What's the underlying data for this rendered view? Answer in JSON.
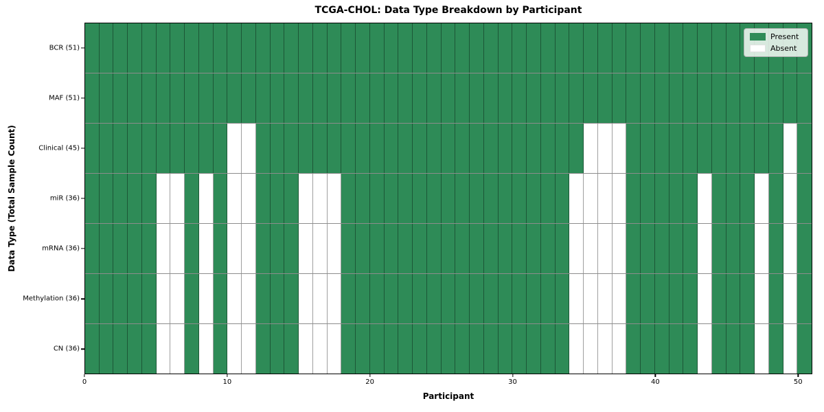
{
  "title": "TCGA-CHOL: Data Type Breakdown by Participant",
  "x_axis": {
    "label": "Participant",
    "ticks": [
      {
        "label": "0",
        "value": 0
      },
      {
        "label": "10",
        "value": 10
      },
      {
        "label": "20",
        "value": 20
      },
      {
        "label": "30",
        "value": 30
      },
      {
        "label": "40",
        "value": 40
      },
      {
        "label": "50",
        "value": 50
      }
    ]
  },
  "y_axis": {
    "label": "Data Type (Total Sample Count)"
  },
  "legend": {
    "items": [
      {
        "label": "Present",
        "color": "#2E8B57"
      },
      {
        "label": "Absent",
        "color": "#FFFFFF"
      }
    ]
  },
  "colors": {
    "present": "#2E8B57",
    "absent": "#FFFFFF",
    "spine": "#000000",
    "grid_line": "rgba(0,0,0,0.4)"
  },
  "chart_data": {
    "type": "heatmap",
    "title": "TCGA-CHOL: Data Type Breakdown by Participant",
    "xlabel": "Participant",
    "ylabel": "Data Type (Total Sample Count)",
    "x_range": [
      0,
      51
    ],
    "n_participants": 51,
    "value_encoding": {
      "present": 1,
      "absent": 0
    },
    "legend_position": "upper right",
    "rows": [
      {
        "label": "BCR (51)",
        "data_type": "BCR",
        "total_samples": 51,
        "absent_participants": []
      },
      {
        "label": "MAF (51)",
        "data_type": "MAF",
        "total_samples": 51,
        "absent_participants": []
      },
      {
        "label": "Clinical (45)",
        "data_type": "Clinical",
        "total_samples": 45,
        "absent_participants": [
          10,
          11,
          35,
          36,
          37,
          49
        ]
      },
      {
        "label": "miR (36)",
        "data_type": "miR",
        "total_samples": 36,
        "absent_participants": [
          5,
          6,
          8,
          10,
          11,
          15,
          16,
          17,
          34,
          35,
          36,
          37,
          43,
          47,
          49
        ]
      },
      {
        "label": "mRNA (36)",
        "data_type": "mRNA",
        "total_samples": 36,
        "absent_participants": [
          5,
          6,
          8,
          10,
          11,
          15,
          16,
          17,
          34,
          35,
          36,
          37,
          43,
          47,
          49
        ]
      },
      {
        "label": "Methylation (36)",
        "data_type": "Methylation",
        "total_samples": 36,
        "absent_participants": [
          5,
          6,
          8,
          10,
          11,
          15,
          16,
          17,
          34,
          35,
          36,
          37,
          43,
          47,
          49
        ]
      },
      {
        "label": "CN (36)",
        "data_type": "CN",
        "total_samples": 36,
        "absent_participants": [
          5,
          6,
          8,
          10,
          11,
          15,
          16,
          17,
          34,
          35,
          36,
          37,
          43,
          47,
          49
        ]
      }
    ]
  }
}
